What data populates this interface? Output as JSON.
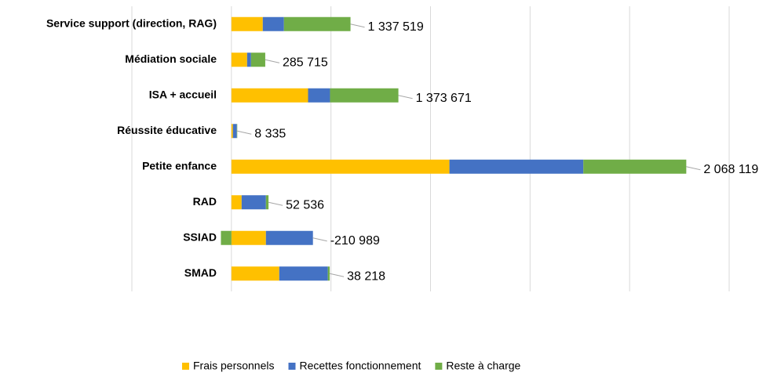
{
  "chart_data": {
    "type": "stacked_barh",
    "categories": [
      "Service support (direction, RAG)",
      "Médiation sociale",
      "ISA + accueil",
      "Réussite éducative",
      "Petite enfance",
      "RAD",
      "SSIAD",
      "SMAD"
    ],
    "series": [
      {
        "name": "Frais personnels",
        "color": "#ffc000",
        "values": [
          630000,
          315000,
          1540000,
          30000,
          4380000,
          205000,
          693000,
          961000
        ]
      },
      {
        "name": "Recettes fonctionnement",
        "color": "#4472c4",
        "values": [
          425000,
          79000,
          441000,
          79000,
          2690000,
          488000,
          945000,
          976000
        ]
      },
      {
        "name": "Reste à charge",
        "color": "#70ad47",
        "values": [
          1337519,
          285715,
          1373671,
          8335,
          2068119,
          52536,
          -210989,
          38218
        ],
        "value_labels": [
          "1 337 519",
          "285 715",
          "1 373 671",
          "8 335",
          "2 068 119",
          "52 536",
          "-210 989",
          "38 218"
        ]
      }
    ],
    "xlim": [
      -2000000,
      10000000
    ],
    "xticks": [
      -2000000,
      0,
      2000000,
      4000000,
      6000000,
      8000000,
      10000000
    ],
    "grid": true,
    "legend": "bottom"
  }
}
